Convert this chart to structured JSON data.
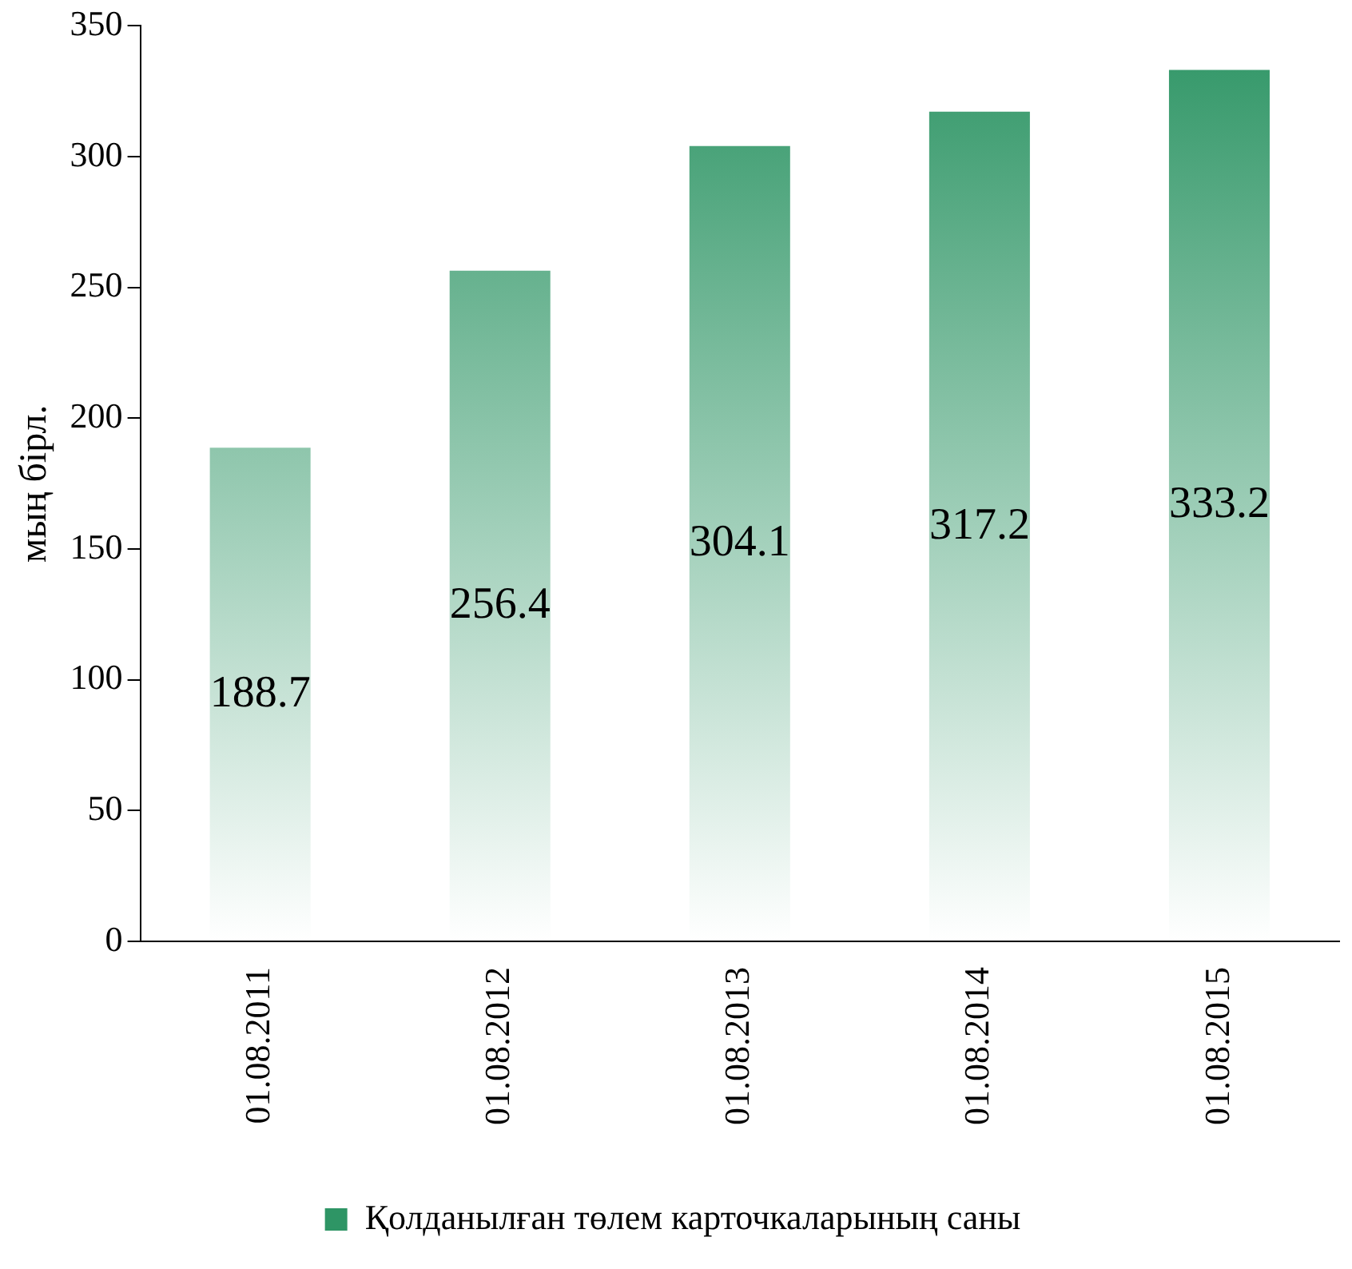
{
  "chart_data": {
    "type": "bar",
    "ylabel": "мың бірл.",
    "categories": [
      "01.08.2011",
      "01.08.2012",
      "01.08.2013",
      "01.08.2014",
      "01.08.2015"
    ],
    "series": [
      {
        "name": "Қолданылған төлем карточкаларының саны",
        "color": "#2e9565",
        "values": [
          188.7,
          256.4,
          304.1,
          317.2,
          333.2
        ]
      }
    ],
    "ylim": [
      0,
      350
    ],
    "yticks": [
      0,
      50,
      100,
      150,
      200,
      250,
      300,
      350
    ],
    "grid": false,
    "legend": "bottom",
    "data_labels": true
  }
}
